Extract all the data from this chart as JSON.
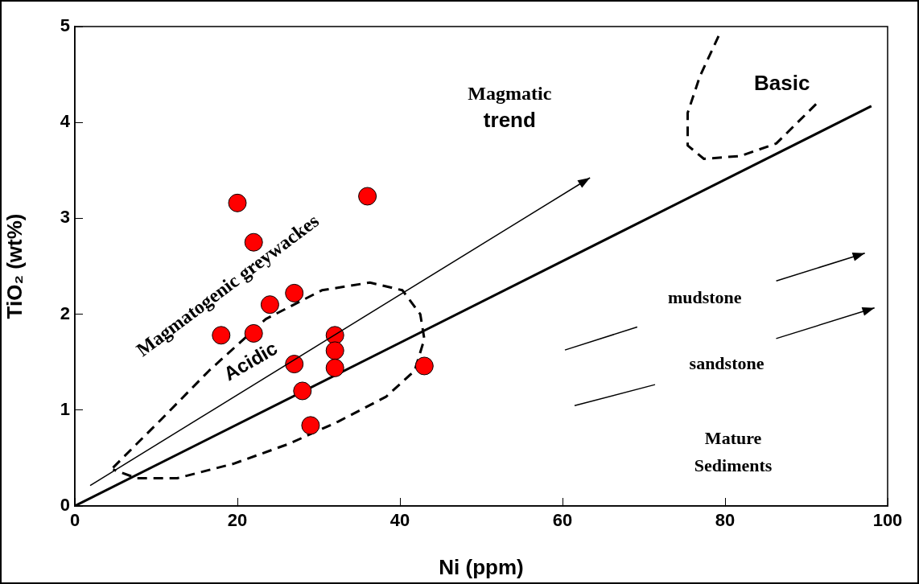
{
  "chart_data": {
    "type": "scatter",
    "xlabel": "Ni (ppm)",
    "ylabel": "TiO₂ (wt%)",
    "xlim": [
      0,
      100
    ],
    "ylim": [
      0,
      5
    ],
    "xticks": [
      0,
      20,
      40,
      60,
      80,
      100
    ],
    "yticks": [
      0,
      1,
      2,
      3,
      4,
      5
    ],
    "series": [
      {
        "type": "scatter",
        "marker": "circle",
        "color": "#ff0000",
        "x": [
          20,
          36,
          22,
          27,
          24,
          18,
          22,
          32,
          32,
          27,
          32,
          43,
          28,
          29
        ],
        "values": [
          3.16,
          3.23,
          2.75,
          2.22,
          2.1,
          1.78,
          1.8,
          1.78,
          1.62,
          1.48,
          1.44,
          1.46,
          1.2,
          0.84
        ]
      },
      {
        "type": "line",
        "color": "#000000",
        "x": [
          0,
          98
        ],
        "values": [
          0,
          4.17
        ]
      },
      {
        "type": "line",
        "color": "#000000",
        "line_style": "dashed",
        "x": [
          4.7,
          10.6,
          16.5,
          23.5,
          30.4,
          36.3,
          40.3,
          42.5,
          43,
          41.8,
          38.3,
          32.4,
          26.4,
          19.5,
          12.6,
          7.6,
          4.7
        ],
        "values": [
          0.4,
          0.9,
          1.41,
          1.95,
          2.25,
          2.33,
          2.25,
          2,
          1.74,
          1.41,
          1.14,
          0.88,
          0.65,
          0.44,
          0.29,
          0.29,
          0.38
        ]
      },
      {
        "type": "line",
        "color": "#000000",
        "line_style": "dashed",
        "x": [
          79.2,
          76.9,
          75.4,
          75.4,
          77.4,
          81.9,
          86.3,
          91.3
        ],
        "values": [
          4.9,
          4.48,
          4.1,
          3.76,
          3.62,
          3.65,
          3.78,
          4.2
        ]
      }
    ],
    "annotations": [
      "Magmatic\ntrend",
      "Basic",
      "Magmatogenic greywackes",
      "Acidic",
      "mudstone",
      "sandstone",
      "Mature\nSediments"
    ]
  }
}
